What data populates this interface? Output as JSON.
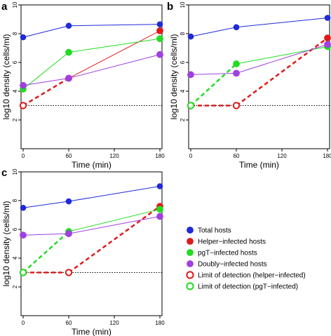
{
  "panel_labels": [
    "a",
    "b",
    "c"
  ],
  "legend": [
    {
      "label": "Total hosts",
      "color": "#1f2ad8",
      "marker": "filled"
    },
    {
      "label": "Helper−infected hosts",
      "color": "#e01a1a",
      "marker": "filled"
    },
    {
      "label": "pgT−infected hosts",
      "color": "#22dd22",
      "marker": "filled"
    },
    {
      "label": "Doubly−infected hosts",
      "color": "#a040e0",
      "marker": "filled"
    },
    {
      "label": "Limit of detection (helper−infected)",
      "color": "#e01a1a",
      "marker": "open"
    },
    {
      "label": "Limit of detection (pgT−infected)",
      "color": "#22dd22",
      "marker": "open"
    }
  ],
  "chart_data": [
    {
      "type": "line",
      "panel": "a",
      "xlabel": "Time (min)",
      "ylabel": "log10 density (cells/ml)",
      "xlim": [
        0,
        180
      ],
      "ylim": [
        0,
        10
      ],
      "xticks": [
        0,
        60,
        120,
        180
      ],
      "yticks": [
        2,
        4,
        6,
        8,
        10
      ],
      "detection_limit": 3,
      "series": [
        {
          "name": "Total hosts",
          "color": "#1f2ad8",
          "style": "solid",
          "points": [
            {
              "x": 0,
              "y": 7.75,
              "marker": "filled"
            },
            {
              "x": 60,
              "y": 8.55,
              "marker": "filled"
            },
            {
              "x": 180,
              "y": 8.65,
              "marker": "filled"
            }
          ]
        },
        {
          "name": "Helper−infected hosts",
          "color": "#e01a1a",
          "style": "mixed",
          "points": [
            {
              "x": 0,
              "y": 3.0,
              "marker": "open"
            },
            {
              "x": 60,
              "y": 4.9,
              "marker": "filled"
            },
            {
              "x": 180,
              "y": 8.2,
              "marker": "filled"
            }
          ],
          "dashed_segments": [
            0
          ]
        },
        {
          "name": "pgT−infected hosts",
          "color": "#22dd22",
          "style": "solid",
          "points": [
            {
              "x": 0,
              "y": 4.15,
              "marker": "filled"
            },
            {
              "x": 60,
              "y": 6.7,
              "marker": "filled"
            },
            {
              "x": 180,
              "y": 7.65,
              "marker": "filled"
            }
          ],
          "dashed_segments": []
        },
        {
          "name": "Doubly−infected hosts",
          "color": "#a040e0",
          "style": "solid",
          "points": [
            {
              "x": 0,
              "y": 4.4,
              "marker": "filled"
            },
            {
              "x": 60,
              "y": 4.9,
              "marker": "filled"
            },
            {
              "x": 180,
              "y": 6.55,
              "marker": "filled"
            }
          ]
        }
      ]
    },
    {
      "type": "line",
      "panel": "b",
      "xlabel": "Time (min)",
      "ylabel": "log10 density (cells/ml)",
      "xlim": [
        0,
        180
      ],
      "ylim": [
        0,
        10
      ],
      "xticks": [
        0,
        60,
        120,
        180
      ],
      "yticks": [
        2,
        4,
        6,
        8,
        10
      ],
      "detection_limit": 3,
      "series": [
        {
          "name": "Total hosts",
          "color": "#1f2ad8",
          "style": "solid",
          "points": [
            {
              "x": 0,
              "y": 7.8,
              "marker": "filled"
            },
            {
              "x": 60,
              "y": 8.45,
              "marker": "filled"
            },
            {
              "x": 180,
              "y": 9.1,
              "marker": "filled"
            }
          ]
        },
        {
          "name": "Helper−infected hosts",
          "color": "#e01a1a",
          "style": "dashed",
          "points": [
            {
              "x": 0,
              "y": 3.0,
              "marker": "open"
            },
            {
              "x": 60,
              "y": 3.0,
              "marker": "open"
            },
            {
              "x": 180,
              "y": 7.7,
              "marker": "filled"
            }
          ]
        },
        {
          "name": "pgT−infected hosts",
          "color": "#22dd22",
          "style": "mixed",
          "points": [
            {
              "x": 0,
              "y": 3.0,
              "marker": "open"
            },
            {
              "x": 60,
              "y": 5.9,
              "marker": "filled"
            },
            {
              "x": 180,
              "y": 7.1,
              "marker": "filled"
            }
          ],
          "dashed_segments": [
            0
          ]
        },
        {
          "name": "Doubly−infected hosts",
          "color": "#a040e0",
          "style": "solid",
          "points": [
            {
              "x": 0,
              "y": 5.15,
              "marker": "filled"
            },
            {
              "x": 60,
              "y": 5.25,
              "marker": "filled"
            },
            {
              "x": 180,
              "y": 7.25,
              "marker": "filled"
            }
          ]
        }
      ]
    },
    {
      "type": "line",
      "panel": "c",
      "xlabel": "Time (min)",
      "ylabel": "log10 density (cells/ml)",
      "xlim": [
        0,
        180
      ],
      "ylim": [
        0,
        10
      ],
      "xticks": [
        0,
        60,
        120,
        180
      ],
      "yticks": [
        2,
        4,
        6,
        8,
        10
      ],
      "detection_limit": 3,
      "series": [
        {
          "name": "Total hosts",
          "color": "#1f2ad8",
          "style": "solid",
          "points": [
            {
              "x": 0,
              "y": 7.5,
              "marker": "filled"
            },
            {
              "x": 60,
              "y": 7.95,
              "marker": "filled"
            },
            {
              "x": 180,
              "y": 9.0,
              "marker": "filled"
            }
          ]
        },
        {
          "name": "Helper−infected hosts",
          "color": "#e01a1a",
          "style": "dashed",
          "points": [
            {
              "x": 0,
              "y": 3.0,
              "marker": "open"
            },
            {
              "x": 60,
              "y": 3.0,
              "marker": "open"
            },
            {
              "x": 180,
              "y": 7.6,
              "marker": "filled"
            }
          ]
        },
        {
          "name": "pgT−infected hosts",
          "color": "#22dd22",
          "style": "mixed",
          "points": [
            {
              "x": 0,
              "y": 3.0,
              "marker": "open"
            },
            {
              "x": 60,
              "y": 5.85,
              "marker": "filled"
            },
            {
              "x": 180,
              "y": 7.4,
              "marker": "filled"
            }
          ],
          "dashed_segments": [
            0
          ]
        },
        {
          "name": "Doubly−infected hosts",
          "color": "#a040e0",
          "style": "solid",
          "points": [
            {
              "x": 0,
              "y": 5.6,
              "marker": "filled"
            },
            {
              "x": 60,
              "y": 5.7,
              "marker": "filled"
            },
            {
              "x": 180,
              "y": 6.9,
              "marker": "filled"
            }
          ]
        }
      ]
    }
  ]
}
